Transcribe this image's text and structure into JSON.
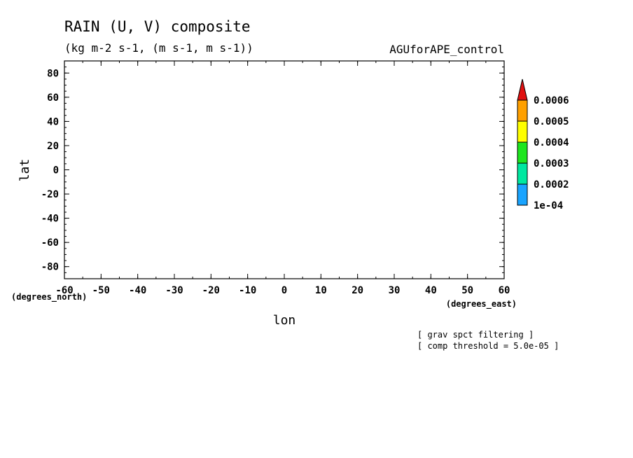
{
  "chart_data": {
    "type": "heatmap",
    "title": "RAIN (U, V) composite",
    "subtitle": "(kg m-2 s-1, (m s-1, m s-1))",
    "experiment": "AGUforAPE_control",
    "xlabel": "lon",
    "ylabel": "lat",
    "x_units": "(degrees_east)",
    "y_units": "(degrees_north)",
    "xlim": [
      -60,
      60
    ],
    "ylim": [
      -90,
      90
    ],
    "x_ticks": [
      "-60",
      "-50",
      "-40",
      "-30",
      "-20",
      "-10",
      "0",
      "10",
      "20",
      "30",
      "40",
      "50",
      "60"
    ],
    "y_ticks": [
      "80",
      "60",
      "40",
      "20",
      "0",
      "-20",
      "-40",
      "-60",
      "-80"
    ],
    "grid": false,
    "legend_placement": "right",
    "colorbar": {
      "colors": [
        "#19a4ff",
        "#00e8a0",
        "#1ee61e",
        "#ffff00",
        "#ffa000",
        "#e01010"
      ],
      "labels": [
        "1e-04",
        "0.0002",
        "0.0003",
        "0.0004",
        "0.0005",
        "0.0006"
      ]
    },
    "notes": [
      "[ grav spct filtering ]",
      "[ comp threshold = 5.0e-05 ]"
    ],
    "values": []
  }
}
